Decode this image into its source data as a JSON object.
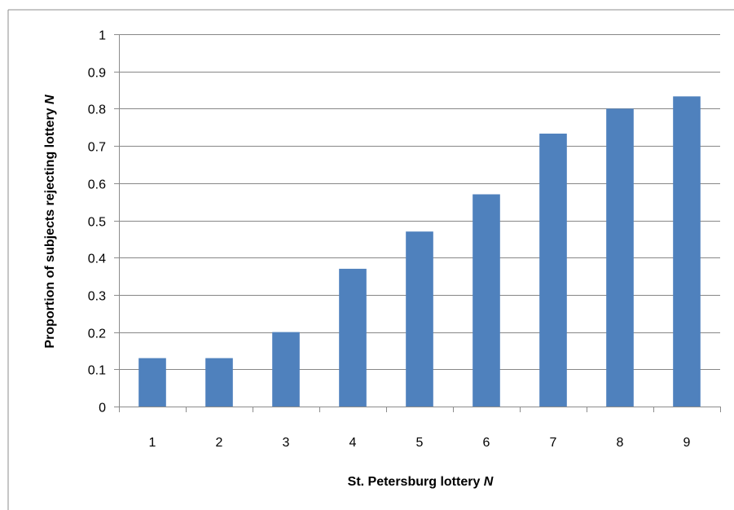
{
  "chart_data": {
    "type": "bar",
    "categories": [
      "1",
      "2",
      "3",
      "4",
      "5",
      "6",
      "7",
      "8",
      "9"
    ],
    "values": [
      0.13,
      0.13,
      0.2,
      0.37,
      0.47,
      0.57,
      0.733,
      0.8,
      0.833
    ],
    "xlabel": "St. Petersburg lottery",
    "xlabel_var": "N",
    "ylabel": "Proportion  of subjects rejecting lottery",
    "ylabel_var": "N",
    "ylim": [
      0,
      1
    ],
    "yticks": [
      "0",
      "0.1",
      "0.2",
      "0.3",
      "0.4",
      "0.5",
      "0.6",
      "0.7",
      "0.8",
      "0.9",
      "1"
    ],
    "grid": true,
    "legend": "none",
    "bar_color": "#4F81BD",
    "gridline_color": "#878787",
    "frame_color": "#8C8C8C"
  }
}
